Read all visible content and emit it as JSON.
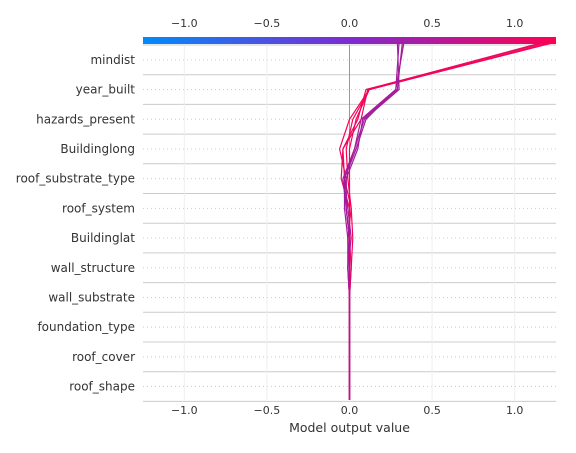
{
  "chart_data": {
    "type": "line",
    "subtype": "shap-decision-plot",
    "xlabel": "Model output value",
    "xlim": [
      -1.25,
      1.25
    ],
    "xticks": [
      "−1.0",
      "−0.5",
      "0.0",
      "0.5",
      "1.0"
    ],
    "xtick_values": [
      -1.0,
      -0.5,
      0.0,
      0.5,
      1.0
    ],
    "base_value": 0.0,
    "features": [
      "mindist",
      "year_built",
      "hazards_present",
      "Buildinglong",
      "roof_substrate_type",
      "roof_system",
      "Buildinglat",
      "wall_structure",
      "wall_substrate",
      "foundation_type",
      "roof_cover",
      "roof_shape"
    ],
    "colorbar": {
      "range": [
        -1.25,
        1.25
      ],
      "colors": [
        "#008bfb",
        "#7e2bd0",
        "#ff0052"
      ]
    },
    "series": [
      {
        "values": [
          0.0,
          0.0,
          0.0,
          0.0,
          0.0,
          -0.01,
          0.0,
          0.0,
          0.0,
          0.0,
          0.04,
          0.12,
          1.25
        ],
        "color": "#ff0052"
      },
      {
        "values": [
          0.0,
          0.0,
          0.0,
          0.0,
          0.0,
          0.01,
          0.0,
          -0.02,
          -0.02,
          -0.06,
          0.0,
          0.12,
          1.23
        ],
        "color": "#f70258"
      },
      {
        "values": [
          0.0,
          0.0,
          0.0,
          0.0,
          0.0,
          0.01,
          0.02,
          0.01,
          -0.03,
          -0.04,
          0.05,
          0.1,
          1.2
        ],
        "color": "#ee055f"
      },
      {
        "values": [
          0.0,
          0.0,
          0.0,
          0.0,
          0.0,
          0.0,
          0.0,
          0.0,
          -0.05,
          -0.04,
          0.07,
          0.11,
          1.18
        ],
        "color": "#e80862"
      },
      {
        "values": [
          0.0,
          0.0,
          0.0,
          0.0,
          0.0,
          -0.01,
          -0.01,
          0.01,
          -0.01,
          -0.02,
          0.02,
          0.12,
          1.24
        ],
        "color": "#fa0155"
      },
      {
        "values": [
          0.0,
          0.0,
          0.0,
          0.0,
          0.0,
          0.0,
          -0.01,
          -0.03,
          -0.03,
          0.04,
          0.1,
          0.28,
          0.3
        ],
        "color": "#a01c9c"
      },
      {
        "values": [
          0.0,
          0.0,
          0.0,
          0.0,
          0.0,
          0.0,
          0.0,
          -0.02,
          -0.02,
          0.05,
          0.08,
          0.29,
          0.32
        ],
        "color": "#a51b98"
      },
      {
        "values": [
          0.0,
          0.0,
          0.0,
          0.0,
          0.0,
          0.0,
          0.0,
          -0.02,
          -0.04,
          0.03,
          0.09,
          0.3,
          0.29
        ],
        "color": "#9e1d9e"
      },
      {
        "values": [
          0.0,
          0.0,
          0.0,
          0.0,
          0.0,
          -0.01,
          0.01,
          -0.01,
          -0.03,
          0.03,
          0.07,
          0.28,
          0.33
        ],
        "color": "#a81a96"
      }
    ]
  }
}
